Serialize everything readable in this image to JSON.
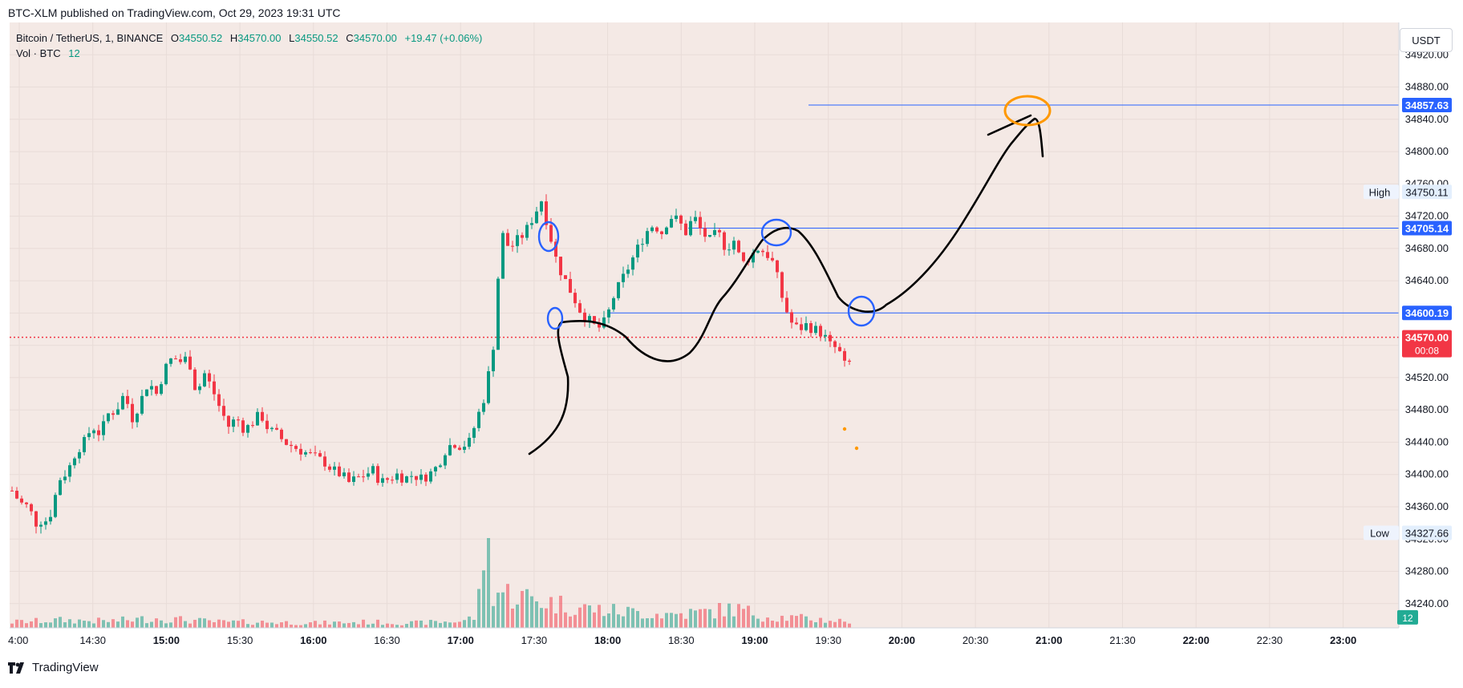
{
  "header": {
    "published": "BTC-XLM published on TradingView.com, Oct 29, 2023 19:31 UTC"
  },
  "legend": {
    "symbol": "Bitcoin / TetherUS, 1, BINANCE",
    "o_label": "O",
    "o": "34550.52",
    "h_label": "H",
    "h": "34570.00",
    "l_label": "L",
    "l": "34550.52",
    "c_label": "C",
    "c": "34570.00",
    "change": "+19.47 (+0.06%)",
    "vol_label": "Vol · BTC",
    "vol": "12"
  },
  "currency": "USDT",
  "footer": {
    "brand": "TradingView"
  },
  "colors": {
    "background": "#f4e9e5",
    "up": "#089981",
    "down": "#f23645",
    "hline": "#2962ff",
    "price_line": "#f23645",
    "drawing": "#000000",
    "marker_blue": "#2962ff",
    "marker_orange": "#ff9800"
  },
  "chart_data": {
    "type": "candlestick",
    "ylim": [
      34210,
      34960
    ],
    "x_ticks": [
      "4:00",
      "14:30",
      "15:00",
      "15:30",
      "16:00",
      "16:30",
      "17:00",
      "17:30",
      "18:00",
      "18:30",
      "19:00",
      "19:30",
      "20:00",
      "20:30",
      "21:00",
      "21:30",
      "22:00",
      "22:30",
      "23:00"
    ],
    "y_ticks": [
      34920,
      34880,
      34840,
      34800,
      34760,
      34720,
      34680,
      34640,
      34600,
      34560,
      34520,
      34480,
      34440,
      34400,
      34360,
      34320,
      34280,
      34240
    ],
    "price_labels": [
      {
        "value": 34857.63,
        "text": "34857.63",
        "kind": "hline"
      },
      {
        "value": 34750.11,
        "text": "34750.11",
        "kind": "high",
        "tag": "High"
      },
      {
        "value": 34705.14,
        "text": "34705.14",
        "kind": "hline"
      },
      {
        "value": 34600.19,
        "text": "34600.19",
        "kind": "hline"
      },
      {
        "value": 34570.0,
        "text": "34570.00",
        "sub": "00:08",
        "kind": "last"
      },
      {
        "value": 34327.66,
        "text": "34327.66",
        "kind": "low",
        "tag": "Low"
      }
    ],
    "volume_label": "12",
    "path": [
      [
        0,
        34380
      ],
      [
        10,
        34365
      ],
      [
        20,
        34360
      ],
      [
        30,
        34340
      ],
      [
        40,
        34345
      ],
      [
        45,
        34340
      ],
      [
        50,
        34360
      ],
      [
        60,
        34395
      ],
      [
        70,
        34405
      ],
      [
        80,
        34430
      ],
      [
        90,
        34440
      ],
      [
        100,
        34460
      ],
      [
        110,
        34450
      ],
      [
        120,
        34475
      ],
      [
        130,
        34480
      ],
      [
        140,
        34500
      ],
      [
        150,
        34470
      ],
      [
        160,
        34490
      ],
      [
        170,
        34515
      ],
      [
        180,
        34500
      ],
      [
        190,
        34530
      ],
      [
        200,
        34545
      ],
      [
        210,
        34540
      ],
      [
        220,
        34545
      ],
      [
        230,
        34500
      ],
      [
        240,
        34525
      ],
      [
        250,
        34505
      ],
      [
        260,
        34480
      ],
      [
        270,
        34460
      ],
      [
        280,
        34470
      ],
      [
        290,
        34455
      ],
      [
        300,
        34465
      ],
      [
        310,
        34475
      ],
      [
        320,
        34455
      ],
      [
        330,
        34450
      ],
      [
        340,
        34440
      ],
      [
        350,
        34435
      ],
      [
        360,
        34430
      ],
      [
        370,
        34425
      ],
      [
        380,
        34420
      ],
      [
        390,
        34415
      ],
      [
        400,
        34405
      ],
      [
        410,
        34400
      ],
      [
        420,
        34390
      ],
      [
        430,
        34395
      ],
      [
        440,
        34400
      ],
      [
        450,
        34405
      ],
      [
        460,
        34390
      ],
      [
        470,
        34395
      ],
      [
        480,
        34400
      ],
      [
        490,
        34395
      ],
      [
        500,
        34400
      ],
      [
        510,
        34395
      ],
      [
        520,
        34400
      ],
      [
        530,
        34410
      ],
      [
        540,
        34430
      ],
      [
        550,
        34440
      ],
      [
        560,
        34435
      ],
      [
        570,
        34440
      ],
      [
        580,
        34470
      ],
      [
        590,
        34500
      ],
      [
        600,
        34560
      ],
      [
        610,
        34700
      ],
      [
        620,
        34680
      ],
      [
        630,
        34690
      ],
      [
        640,
        34700
      ],
      [
        650,
        34720
      ],
      [
        660,
        34740
      ],
      [
        670,
        34700
      ],
      [
        680,
        34660
      ],
      [
        690,
        34640
      ],
      [
        700,
        34620
      ],
      [
        710,
        34600
      ],
      [
        720,
        34590
      ],
      [
        730,
        34580
      ],
      [
        740,
        34590
      ],
      [
        750,
        34620
      ],
      [
        760,
        34640
      ],
      [
        770,
        34660
      ],
      [
        780,
        34680
      ],
      [
        790,
        34700
      ],
      [
        800,
        34710
      ],
      [
        810,
        34700
      ],
      [
        820,
        34720
      ],
      [
        830,
        34715
      ],
      [
        840,
        34700
      ],
      [
        850,
        34720
      ],
      [
        860,
        34700
      ],
      [
        870,
        34690
      ],
      [
        880,
        34700
      ],
      [
        890,
        34680
      ],
      [
        900,
        34690
      ],
      [
        910,
        34660
      ],
      [
        920,
        34670
      ],
      [
        930,
        34680
      ],
      [
        940,
        34675
      ],
      [
        950,
        34660
      ],
      [
        960,
        34620
      ],
      [
        970,
        34590
      ],
      [
        980,
        34580
      ],
      [
        990,
        34585
      ],
      [
        1000,
        34580
      ],
      [
        1010,
        34575
      ],
      [
        1020,
        34560
      ],
      [
        1030,
        34555
      ],
      [
        1040,
        34530
      ],
      [
        1050,
        34550
      ],
      [
        1055,
        34570
      ]
    ],
    "volume_path": [
      [
        0,
        6
      ],
      [
        60,
        8
      ],
      [
        120,
        7
      ],
      [
        180,
        10
      ],
      [
        220,
        8
      ],
      [
        260,
        6
      ],
      [
        320,
        6
      ],
      [
        380,
        5
      ],
      [
        440,
        6
      ],
      [
        500,
        5
      ],
      [
        560,
        7
      ],
      [
        580,
        12
      ],
      [
        590,
        100
      ],
      [
        600,
        40
      ],
      [
        620,
        35
      ],
      [
        660,
        28
      ],
      [
        700,
        22
      ],
      [
        740,
        18
      ],
      [
        780,
        16
      ],
      [
        820,
        14
      ],
      [
        860,
        16
      ],
      [
        900,
        20
      ],
      [
        940,
        12
      ],
      [
        980,
        10
      ],
      [
        1020,
        8
      ],
      [
        1055,
        6
      ]
    ]
  }
}
